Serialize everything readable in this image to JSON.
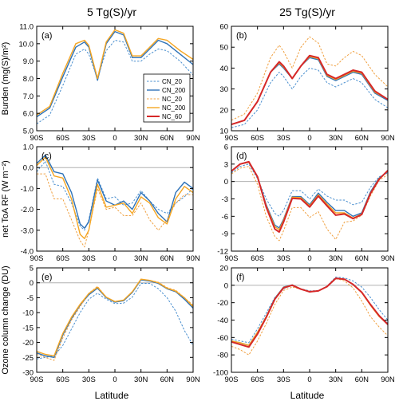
{
  "columns": [
    "5 Tg(S)/yr",
    "25 Tg(S)/yr"
  ],
  "xlabel": "Latitude",
  "xticks": [
    -90,
    -60,
    -30,
    0,
    30,
    60,
    90
  ],
  "xticklabels": [
    "90S",
    "60S",
    "30S",
    "0",
    "30N",
    "60N",
    "90N"
  ],
  "legend": {
    "placement": "inside panel (a), lower-right",
    "entries": [
      {
        "series": "CN_20",
        "label": "CN_20",
        "color": "#4a8fcf",
        "dash": true
      },
      {
        "series": "CN_200",
        "label": "CN_200",
        "color": "#2f73b8",
        "dash": false
      },
      {
        "series": "NC_20",
        "label": "NC_20",
        "color": "#f0a040",
        "dash": true
      },
      {
        "series": "NC_200",
        "label": "NC_200",
        "color": "#f5a623",
        "dash": false
      },
      {
        "series": "NC_60",
        "label": "NC_60",
        "color": "#d62828",
        "dash": false
      }
    ]
  },
  "rows": [
    {
      "ylabel": "Burden (mg(S)/m²)"
    },
    {
      "ylabel": "net ToA RF (W m⁻²)"
    },
    {
      "ylabel": "Ozone column change (DU)"
    }
  ],
  "chart_data": [
    {
      "type": "line",
      "panel": "(a)",
      "row": 0,
      "col": 0,
      "xlim": [
        -90,
        90
      ],
      "ylim": [
        5,
        11
      ],
      "yticks": [
        5,
        6,
        7,
        8,
        9,
        10,
        11
      ],
      "yticklabels": [
        "5.0",
        "6.0",
        "7.0",
        "8.0",
        "9.0",
        "10.0",
        "11.0"
      ],
      "x": [
        -90,
        -75,
        -60,
        -45,
        -35,
        -30,
        -20,
        -10,
        0,
        10,
        20,
        30,
        40,
        50,
        60,
        75,
        90
      ],
      "series": [
        {
          "name": "CN_20",
          "values": [
            5.4,
            5.9,
            7.6,
            9.4,
            9.7,
            9.4,
            8.0,
            9.6,
            10.2,
            10.1,
            9.0,
            9.0,
            9.4,
            9.7,
            9.6,
            9.0,
            8.2
          ]
        },
        {
          "name": "CN_200",
          "values": [
            5.8,
            6.3,
            8.1,
            9.8,
            10.1,
            9.8,
            7.9,
            10.0,
            10.7,
            10.5,
            9.2,
            9.2,
            9.7,
            10.2,
            10.0,
            9.4,
            8.8
          ]
        },
        {
          "name": "NC_20",
          "values": [
            5.9,
            6.4,
            8.3,
            10.0,
            10.2,
            9.9,
            8.0,
            10.1,
            10.8,
            10.6,
            9.3,
            9.3,
            9.8,
            10.3,
            10.2,
            9.6,
            9.1
          ]
        },
        {
          "name": "NC_200",
          "values": [
            5.9,
            6.4,
            8.3,
            10.0,
            10.2,
            9.9,
            8.0,
            10.1,
            10.8,
            10.6,
            9.3,
            9.3,
            9.8,
            10.3,
            10.2,
            9.6,
            9.1
          ]
        }
      ]
    },
    {
      "type": "line",
      "panel": "(b)",
      "row": 0,
      "col": 1,
      "xlim": [
        -90,
        90
      ],
      "ylim": [
        10,
        60
      ],
      "yticks": [
        10,
        20,
        30,
        40,
        50,
        60
      ],
      "yticklabels": [
        "10",
        "20",
        "30",
        "40",
        "50",
        "60"
      ],
      "x": [
        -90,
        -75,
        -60,
        -45,
        -35,
        -30,
        -20,
        -10,
        0,
        10,
        20,
        30,
        40,
        50,
        60,
        75,
        90
      ],
      "series": [
        {
          "name": "CN_20",
          "values": [
            11.5,
            13.0,
            20.0,
            33.0,
            38.0,
            36.0,
            30.0,
            36.0,
            40.0,
            39.0,
            33.0,
            31.0,
            33.0,
            35.0,
            33.0,
            25.0,
            21.0
          ]
        },
        {
          "name": "CN_200",
          "values": [
            13.0,
            15.0,
            24.0,
            38.0,
            42.0,
            40.0,
            35.0,
            41.0,
            45.0,
            44.0,
            36.0,
            34.0,
            36.0,
            38.0,
            37.0,
            28.0,
            24.5
          ]
        },
        {
          "name": "NC_20",
          "values": [
            15.0,
            18.0,
            28.0,
            45.0,
            51.0,
            48.0,
            40.0,
            50.0,
            55.0,
            52.0,
            42.0,
            41.0,
            45.0,
            48.0,
            46.0,
            37.0,
            31.0
          ]
        },
        {
          "name": "NC_200",
          "values": [
            13.0,
            15.0,
            24.0,
            38.0,
            42.5,
            40.5,
            35.0,
            41.0,
            45.5,
            44.5,
            36.5,
            34.5,
            36.5,
            38.5,
            37.5,
            28.5,
            25.0
          ]
        },
        {
          "name": "NC_60",
          "values": [
            13.0,
            15.0,
            24.0,
            38.0,
            43.0,
            41.0,
            35.0,
            41.0,
            46.0,
            45.0,
            37.0,
            35.0,
            37.0,
            39.0,
            38.0,
            29.0,
            25.0
          ]
        }
      ]
    },
    {
      "type": "line",
      "panel": "(c)",
      "row": 1,
      "col": 0,
      "xlim": [
        -90,
        90
      ],
      "ylim": [
        -4,
        1
      ],
      "yticks": [
        -4,
        -3,
        -2,
        -1,
        0,
        1
      ],
      "yticklabels": [
        "-4.0",
        "-3.0",
        "-2.0",
        "-1.0",
        "0.0",
        "1.0"
      ],
      "x": [
        -90,
        -80,
        -70,
        -60,
        -50,
        -40,
        -35,
        -30,
        -20,
        -10,
        0,
        10,
        20,
        30,
        40,
        50,
        60,
        70,
        80,
        90
      ],
      "series": [
        {
          "name": "CN_20",
          "values": [
            -0.2,
            0.3,
            -0.8,
            -0.9,
            -1.7,
            -2.8,
            -3.0,
            -2.5,
            -0.5,
            -1.5,
            -1.4,
            -1.8,
            -1.7,
            -1.1,
            -1.6,
            -2.0,
            -2.2,
            -1.7,
            -1.4,
            -1.0
          ]
        },
        {
          "name": "CN_200",
          "values": [
            0.2,
            0.6,
            -0.2,
            -0.3,
            -1.2,
            -2.7,
            -2.9,
            -2.6,
            -0.6,
            -1.6,
            -1.8,
            -1.6,
            -2.0,
            -1.2,
            -1.6,
            -2.2,
            -2.6,
            -1.2,
            -0.7,
            -1.0
          ]
        },
        {
          "name": "NC_20",
          "values": [
            -0.3,
            -0.3,
            -1.5,
            -1.5,
            -2.5,
            -3.5,
            -3.8,
            -3.0,
            -1.0,
            -2.0,
            -1.9,
            -2.3,
            -2.3,
            -1.7,
            -2.5,
            -3.0,
            -2.5,
            -1.7,
            -1.3,
            -1.3
          ]
        },
        {
          "name": "NC_200",
          "values": [
            0.1,
            0.5,
            -0.4,
            -0.5,
            -1.5,
            -3.2,
            -3.4,
            -3.0,
            -0.8,
            -1.9,
            -1.8,
            -1.7,
            -2.2,
            -1.4,
            -1.7,
            -2.4,
            -2.7,
            -1.5,
            -0.9,
            -1.2
          ]
        }
      ]
    },
    {
      "type": "line",
      "panel": "(d)",
      "row": 1,
      "col": 1,
      "xlim": [
        -90,
        90
      ],
      "ylim": [
        -12,
        6
      ],
      "yticks": [
        -12,
        -9,
        -6,
        -3,
        0,
        3,
        6
      ],
      "yticklabels": [
        "-12",
        "-9",
        "-6",
        "-3",
        "0",
        "3",
        "6"
      ],
      "x": [
        -90,
        -80,
        -70,
        -60,
        -50,
        -40,
        -35,
        -30,
        -20,
        -10,
        0,
        10,
        20,
        30,
        40,
        50,
        60,
        70,
        80,
        90
      ],
      "series": [
        {
          "name": "CN_20",
          "values": [
            1.5,
            2.6,
            3.0,
            0.5,
            -3.0,
            -5.5,
            -6.0,
            -5.0,
            -1.6,
            -1.6,
            -3.0,
            -1.3,
            -2.5,
            -3.2,
            -3.2,
            -4.0,
            -3.6,
            -1.0,
            0.8,
            1.5
          ]
        },
        {
          "name": "CN_200",
          "values": [
            1.8,
            3.0,
            3.3,
            0.8,
            -4.0,
            -7.5,
            -8.0,
            -6.5,
            -2.6,
            -2.6,
            -4.0,
            -2.0,
            -3.6,
            -5.0,
            -5.0,
            -6.0,
            -5.4,
            -1.8,
            0.6,
            1.7
          ]
        },
        {
          "name": "NC_20",
          "values": [
            1.3,
            2.3,
            2.6,
            -0.5,
            -6.0,
            -9.5,
            -10.2,
            -8.5,
            -4.5,
            -4.5,
            -6.2,
            -5.2,
            -8.2,
            -10.0,
            -7.0,
            -6.8,
            -5.8,
            -2.5,
            0.2,
            1.2
          ]
        },
        {
          "name": "NC_200",
          "values": [
            1.8,
            3.0,
            3.3,
            0.8,
            -4.2,
            -7.8,
            -8.3,
            -6.7,
            -2.7,
            -2.8,
            -4.2,
            -2.3,
            -3.9,
            -5.4,
            -5.4,
            -6.3,
            -5.6,
            -2.0,
            0.5,
            1.8
          ]
        },
        {
          "name": "NC_60",
          "values": [
            1.8,
            3.0,
            3.4,
            0.8,
            -4.4,
            -8.2,
            -8.7,
            -7.0,
            -2.9,
            -3.0,
            -4.4,
            -2.5,
            -4.2,
            -5.8,
            -5.6,
            -6.4,
            -5.7,
            -2.1,
            0.4,
            1.9
          ]
        }
      ]
    },
    {
      "type": "line",
      "panel": "(e)",
      "row": 2,
      "col": 0,
      "xlim": [
        -90,
        90
      ],
      "ylim": [
        -30,
        5
      ],
      "yticks": [
        -30,
        -25,
        -20,
        -15,
        -10,
        -5,
        0,
        5
      ],
      "yticklabels": [
        "-30",
        "-25",
        "-20",
        "-15",
        "-10",
        "-5",
        "0",
        "5"
      ],
      "x": [
        -90,
        -80,
        -70,
        -60,
        -50,
        -40,
        -30,
        -20,
        -10,
        0,
        10,
        20,
        30,
        40,
        50,
        60,
        70,
        80,
        90
      ],
      "series": [
        {
          "name": "CN_20",
          "values": [
            -25.5,
            -25.0,
            -24.5,
            -21.0,
            -15.5,
            -10.0,
            -5.5,
            -3.5,
            -5.5,
            -7.0,
            -6.8,
            -4.8,
            -0.2,
            -0.2,
            -2.0,
            -5.0,
            -9.5,
            -16.0,
            -21.0
          ]
        },
        {
          "name": "CN_200",
          "values": [
            -23.5,
            -24.5,
            -25.0,
            -17.5,
            -12.0,
            -7.5,
            -4.0,
            -1.8,
            -5.0,
            -6.5,
            -6.0,
            -3.2,
            1.0,
            0.6,
            -0.2,
            -2.0,
            -3.0,
            -5.5,
            -8.5
          ]
        },
        {
          "name": "NC_20",
          "values": [
            -24.0,
            -25.0,
            -26.0,
            -18.5,
            -12.5,
            -8.0,
            -3.5,
            -1.2,
            -4.8,
            -6.3,
            -5.8,
            -3.0,
            1.2,
            0.8,
            0.2,
            -1.6,
            -2.5,
            -5.0,
            -7.5
          ]
        },
        {
          "name": "NC_200",
          "values": [
            -23.0,
            -24.0,
            -24.5,
            -17.0,
            -11.5,
            -7.2,
            -3.6,
            -1.5,
            -4.8,
            -6.3,
            -5.8,
            -3.0,
            1.2,
            0.8,
            0.0,
            -1.8,
            -2.8,
            -5.0,
            -8.0
          ]
        }
      ]
    },
    {
      "type": "line",
      "panel": "(f)",
      "row": 2,
      "col": 1,
      "xlim": [
        -90,
        90
      ],
      "ylim": [
        -100,
        20
      ],
      "yticks": [
        -100,
        -80,
        -60,
        -40,
        -20,
        0,
        20
      ],
      "yticklabels": [
        "-100",
        "-80",
        "-60",
        "-40",
        "-20",
        "0",
        "20"
      ],
      "x": [
        -90,
        -80,
        -70,
        -60,
        -50,
        -40,
        -30,
        -20,
        -10,
        0,
        10,
        20,
        30,
        40,
        50,
        60,
        70,
        80,
        90
      ],
      "series": [
        {
          "name": "CN_20",
          "values": [
            -62.0,
            -64.0,
            -66.0,
            -50.0,
            -32.0,
            -14.0,
            -4.0,
            0.0,
            -4.0,
            -6.5,
            -6.0,
            -1.0,
            9.5,
            8.5,
            5.0,
            -2.0,
            -14.0,
            -28.0,
            -40.0
          ]
        },
        {
          "name": "CN_200",
          "values": [
            -64.0,
            -66.0,
            -69.0,
            -54.0,
            -36.0,
            -15.0,
            -2.0,
            0.5,
            -4.5,
            -7.5,
            -6.5,
            -1.5,
            7.5,
            7.0,
            1.0,
            -8.0,
            -22.0,
            -35.0,
            -44.0
          ]
        },
        {
          "name": "NC_20",
          "values": [
            -70.0,
            -74.0,
            -80.0,
            -64.0,
            -44.0,
            -22.0,
            -6.0,
            -2.0,
            -4.5,
            -7.0,
            -6.5,
            -2.0,
            8.0,
            5.0,
            -3.0,
            -18.0,
            -36.0,
            -48.0,
            -58.0
          ]
        },
        {
          "name": "NC_200",
          "values": [
            -64.0,
            -66.0,
            -69.0,
            -54.0,
            -36.0,
            -15.5,
            -2.5,
            0.3,
            -4.5,
            -7.5,
            -6.5,
            -1.5,
            7.5,
            7.0,
            1.0,
            -8.5,
            -23.0,
            -36.0,
            -45.0
          ]
        },
        {
          "name": "NC_60",
          "values": [
            -65.0,
            -68.0,
            -71.0,
            -56.0,
            -37.0,
            -16.0,
            -3.0,
            0.0,
            -4.5,
            -7.5,
            -6.5,
            -1.5,
            8.0,
            7.0,
            1.0,
            -8.0,
            -22.0,
            -35.0,
            -45.0
          ]
        }
      ]
    }
  ]
}
